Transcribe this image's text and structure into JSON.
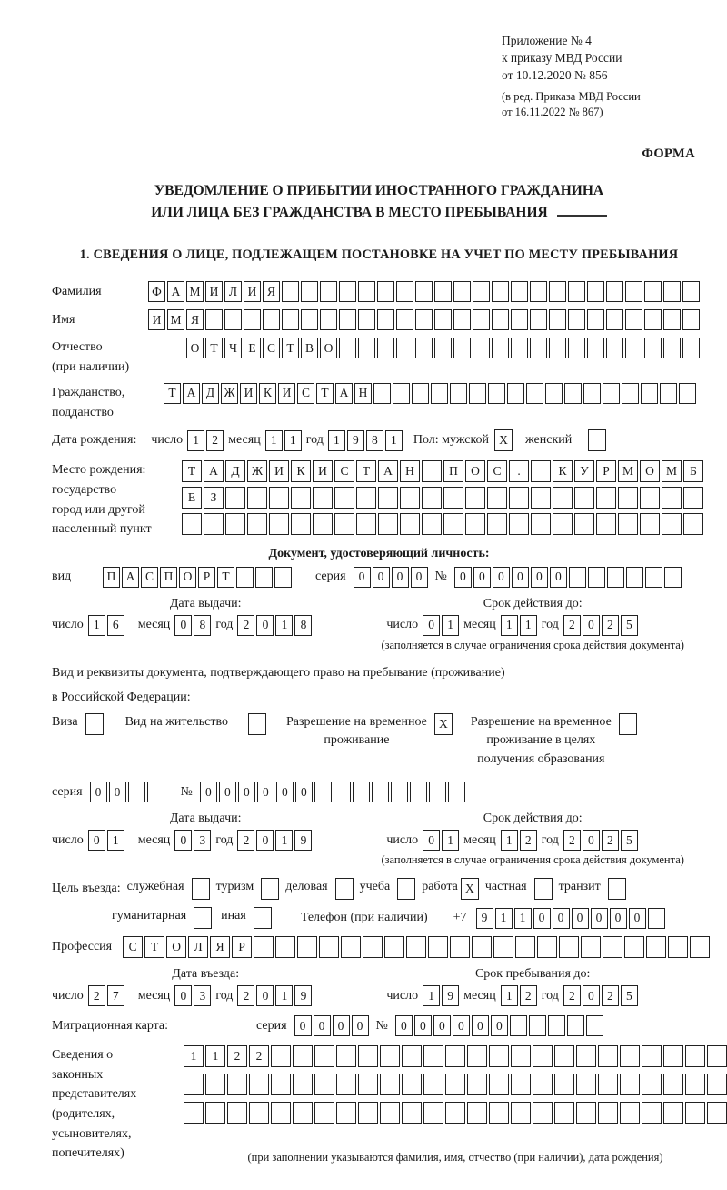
{
  "header": {
    "appendix": [
      "Приложение № 4",
      "к приказу МВД России",
      "от 10.12.2020 № 856"
    ],
    "edition": [
      "(в ред. Приказа МВД России",
      "от 16.11.2022 № 867)"
    ],
    "form_label": "ФОРМА"
  },
  "title": {
    "line1": "УВЕДОМЛЕНИЕ О ПРИБЫТИИ ИНОСТРАННОГО ГРАЖДАНИНА",
    "line2": "ИЛИ ЛИЦА БЕЗ ГРАЖДАНСТВА В МЕСТО ПРЕБЫВАНИЯ"
  },
  "section1_heading": "1. СВЕДЕНИЯ О ЛИЦЕ, ПОДЛЕЖАЩЕМ ПОСТАНОВКЕ НА УЧЕТ ПО МЕСТУ ПРЕБЫВАНИЯ",
  "date_labels": {
    "day": "число",
    "month": "месяц",
    "year": "год"
  },
  "surname": {
    "label": "Фамилия",
    "cells": {
      "text": "ФАМИЛИЯ",
      "len": 29
    }
  },
  "firstname": {
    "label": "Имя",
    "cells": {
      "text": "ИМЯ",
      "len": 29
    }
  },
  "patronymic": {
    "label": "Отчество",
    "label2": "(при наличии)",
    "cells": {
      "text": "ОТЧЕСТВО",
      "len": 27
    }
  },
  "citizenship": {
    "label": "Гражданство,",
    "label2": "подданство",
    "cells": {
      "text": "ТАДЖИКИСТАН",
      "len": 28
    }
  },
  "birth_date": {
    "label": "Дата рождения:",
    "day": {
      "text": "12",
      "len": 2
    },
    "month": {
      "text": "11",
      "len": 2
    },
    "year": {
      "text": "1981",
      "len": 4
    }
  },
  "sex": {
    "label": "Пол:",
    "male_label": "мужской",
    "male_box": {
      "text": "X",
      "len": 1
    },
    "female_label": "женский",
    "female_box": {
      "text": "",
      "len": 1
    }
  },
  "birth_place": {
    "label": "Место рождения:",
    "sublabel1": "государство",
    "sublabel2": "город или другой",
    "sublabel3": "населенный пункт",
    "row1": {
      "text": "ТАДЖИКИСТАН ПОС. КУРМОМБ",
      "len": 24
    },
    "row2": {
      "text": "ЕЗ",
      "len": 24
    },
    "row3": {
      "text": "",
      "len": 24
    }
  },
  "identity_doc": {
    "heading": "Документ, удостоверяющий личность:",
    "kind_label": "вид",
    "kind": {
      "text": "ПАСПОРТ",
      "len": 10
    },
    "series_label": "серия",
    "series": {
      "text": "0000",
      "len": 4
    },
    "number_label": "№",
    "number": {
      "text": "000000",
      "len": 12
    },
    "issue_heading": "Дата выдачи:",
    "issue": {
      "day": {
        "text": "16",
        "len": 2
      },
      "month": {
        "text": "08",
        "len": 2
      },
      "year": {
        "text": "2018",
        "len": 4
      }
    },
    "expiry_heading": "Срок действия до:",
    "expiry": {
      "day": {
        "text": "01",
        "len": 2
      },
      "month": {
        "text": "11",
        "len": 2
      },
      "year": {
        "text": "2025",
        "len": 4
      }
    },
    "note": "(заполняется в случае ограничения срока действия документа)"
  },
  "residence_doc": {
    "intro1": "Вид и реквизиты документа, подтверждающего право на пребывание (проживание)",
    "intro2": "в Российской Федерации:",
    "visa_label": "Виза",
    "visa_box": {
      "text": "",
      "len": 1
    },
    "permit_label": "Вид на жительство",
    "permit_box": {
      "text": "",
      "len": 1
    },
    "temp_label1": "Разрешение на временное",
    "temp_label2": "проживание",
    "temp_box": {
      "text": "X",
      "len": 1
    },
    "edu_label1": "Разрешение на временное",
    "edu_label2": "проживание в целях",
    "edu_label3": "получения образования",
    "edu_box": {
      "text": "",
      "len": 1
    },
    "series_label": "серия",
    "series": {
      "text": "00",
      "len": 4
    },
    "number_label": "№",
    "number": {
      "text": "000000",
      "len": 14
    },
    "issue_heading": "Дата выдачи:",
    "issue": {
      "day": {
        "text": "01",
        "len": 2
      },
      "month": {
        "text": "03",
        "len": 2
      },
      "year": {
        "text": "2019",
        "len": 4
      }
    },
    "expiry_heading": "Срок действия до:",
    "expiry": {
      "day": {
        "text": "01",
        "len": 2
      },
      "month": {
        "text": "12",
        "len": 2
      },
      "year": {
        "text": "2025",
        "len": 4
      }
    },
    "note": "(заполняется в случае ограничения срока действия документа)"
  },
  "entry_purpose": {
    "label": "Цель въезда:",
    "opt_official": {
      "label": "служебная",
      "box": {
        "text": "",
        "len": 1
      }
    },
    "opt_tourism": {
      "label": "туризм",
      "box": {
        "text": "",
        "len": 1
      }
    },
    "opt_business": {
      "label": "деловая",
      "box": {
        "text": "",
        "len": 1
      }
    },
    "opt_study": {
      "label": "учеба",
      "box": {
        "text": "",
        "len": 1
      }
    },
    "opt_work": {
      "label": "работа",
      "box": {
        "text": "X",
        "len": 1
      }
    },
    "opt_private": {
      "label": "частная",
      "box": {
        "text": "",
        "len": 1
      }
    },
    "opt_transit": {
      "label": "транзит",
      "box": {
        "text": "",
        "len": 1
      }
    },
    "opt_humanitarian": {
      "label": "гуманитарная",
      "box": {
        "text": "",
        "len": 1
      }
    },
    "opt_other": {
      "label": "иная",
      "box": {
        "text": "",
        "len": 1
      }
    },
    "phone_label": "Телефон (при наличии)",
    "phone_prefix": "+7",
    "phone": {
      "text": "911000000",
      "len": 10
    }
  },
  "profession": {
    "label": "Профессия",
    "cells": {
      "text": "СТОЛЯР",
      "len": 27
    }
  },
  "entry_date": {
    "heading": "Дата въезда:",
    "day": {
      "text": "27",
      "len": 2
    },
    "month": {
      "text": "03",
      "len": 2
    },
    "year": {
      "text": "2019",
      "len": 4
    }
  },
  "stay_until": {
    "heading": "Срок пребывания до:",
    "day": {
      "text": "19",
      "len": 2
    },
    "month": {
      "text": "12",
      "len": 2
    },
    "year": {
      "text": "2025",
      "len": 4
    }
  },
  "migration_card": {
    "label": "Миграционная карта:",
    "series_label": "серия",
    "series": {
      "text": "0000",
      "len": 4
    },
    "number_label": "№",
    "number": {
      "text": "000000",
      "len": 11
    }
  },
  "representatives": {
    "label1": "Сведения о",
    "label2": "законных",
    "label3": "представителях",
    "label4": "(родителях,",
    "label5": "усыновителях,",
    "label6": "попечителях)",
    "row1": {
      "text": "1122",
      "len": 25
    },
    "row2": {
      "text": "",
      "len": 25
    },
    "row3": {
      "text": "",
      "len": 25
    },
    "note": "(при заполнении указываются фамилия, имя, отчество (при наличии), дата рождения)"
  }
}
